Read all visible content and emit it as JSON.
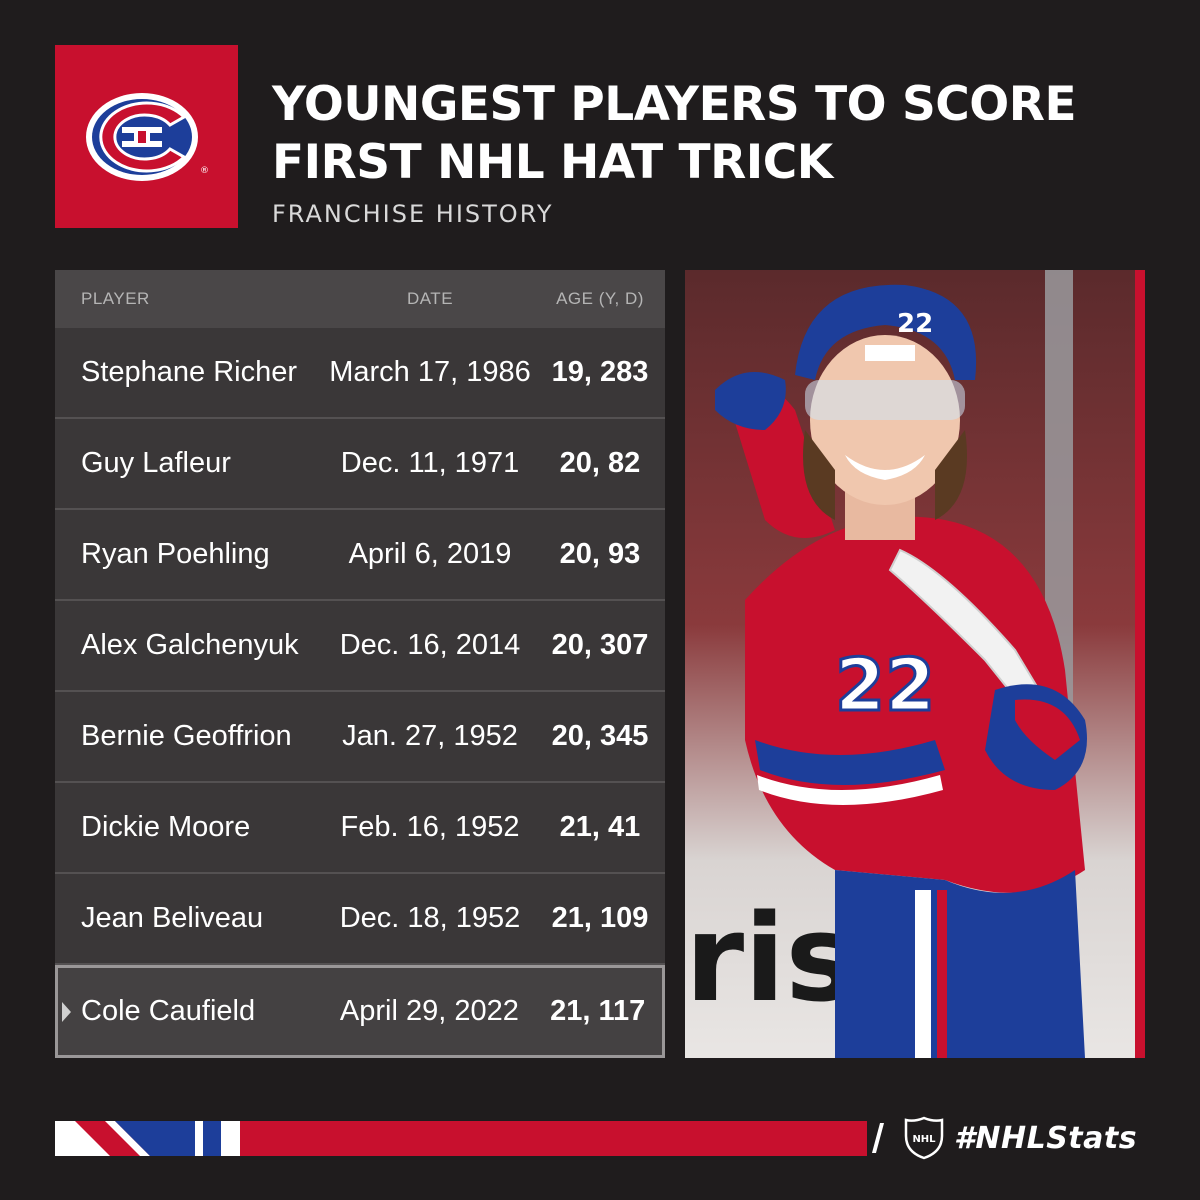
{
  "header": {
    "title_line1": "YOUNGEST PLAYERS TO SCORE",
    "title_line2": "FIRST NHL HAT TRICK",
    "subtitle": "FRANCHISE HISTORY"
  },
  "table": {
    "columns": [
      "PLAYER",
      "DATE",
      "AGE (Y, D)"
    ],
    "rows": [
      {
        "player": "Stephane Richer",
        "date": "March 17, 1986",
        "age": "19, 283"
      },
      {
        "player": "Guy Lafleur",
        "date": "Dec. 11, 1971",
        "age": "20, 82"
      },
      {
        "player": "Ryan Poehling",
        "date": "April 6, 2019",
        "age": "20, 93"
      },
      {
        "player": "Alex Galchenyuk",
        "date": "Dec. 16, 2014",
        "age": "20, 307"
      },
      {
        "player": "Bernie Geoffrion",
        "date": "Jan. 27, 1952",
        "age": "20, 345"
      },
      {
        "player": "Dickie Moore",
        "date": "Feb. 16, 1952",
        "age": "21, 41"
      },
      {
        "player": "Jean Beliveau",
        "date": "Dec. 18, 1952",
        "age": "21, 109"
      },
      {
        "player": "Cole Caufield",
        "date": "April 29, 2022",
        "age": "21, 117"
      }
    ],
    "highlighted_row": 7
  },
  "photo": {
    "jersey_number": "22"
  },
  "footer": {
    "hashtag": "#NHLStats"
  },
  "colors": {
    "background": "#1f1c1d",
    "brand_red": "#c8102e",
    "brand_blue": "#1d3e9a"
  },
  "icons": [
    "canadiens-logo-icon",
    "nhl-shield-icon",
    "row-pointer-icon"
  ]
}
